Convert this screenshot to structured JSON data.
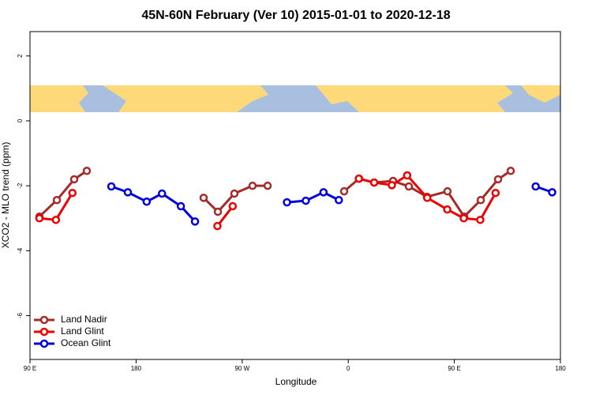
{
  "chart_data": {
    "type": "line",
    "title": "45N-60N February (Ver 10)   2015-01-01 to 2020-12-18",
    "x_label": "Longitude",
    "y_label": "XCO2 - MLO trend (ppm)",
    "xlim": [
      90,
      540
    ],
    "xticks": [
      {
        "value": 90,
        "label": "90 E"
      },
      180,
      {
        "value": 270,
        "label": "90 W"
      },
      {
        "value": 360,
        "label": "0"
      },
      {
        "value": 450,
        "label": "90 E"
      },
      {
        "value": 540,
        "label": "180"
      }
    ],
    "ylim": [
      -7.35,
      2.75
    ],
    "yticks": [
      -6,
      -4,
      -2,
      0,
      2
    ],
    "legend": "bottom-left",
    "series": [
      {
        "name": "Land Nadir",
        "color": "#a52a2a",
        "x": [
          98,
          112.8,
          127.5,
          138.2,
          null,
          237.3,
          249.4,
          263.4,
          278.8,
          291.6,
          null,
          356.5,
          369.2,
          382,
          398,
          411.4,
          426.8,
          444.2,
          458.3,
          472.4,
          487.1,
          497.8
        ],
        "values": [
          -2.95,
          -2.44,
          -1.8,
          -1.54,
          null,
          -2.37,
          -2.8,
          -2.24,
          -2.0,
          -2.0,
          null,
          -2.17,
          -1.78,
          -1.9,
          -1.85,
          -2.02,
          -2.34,
          -2.17,
          -2.95,
          -2.44,
          -1.8,
          -1.54
        ]
      },
      {
        "name": "Land Glint",
        "color": "#ee0000",
        "x": [
          98,
          112,
          126,
          null,
          249,
          262,
          null,
          369,
          382,
          397,
          410,
          427,
          444,
          458,
          472,
          485
        ],
        "values": [
          -3.0,
          -3.05,
          -2.22,
          null,
          -3.24,
          -2.63,
          null,
          -1.78,
          -1.9,
          -1.98,
          -1.68,
          -2.37,
          -2.73,
          -3.0,
          -3.05,
          -2.22
        ]
      },
      {
        "name": "Ocean Glint",
        "color": "#0000dd",
        "x": [
          159,
          173,
          189,
          202,
          218,
          230,
          null,
          308,
          324,
          339,
          352,
          null,
          519,
          533
        ],
        "values": [
          -2.02,
          -2.2,
          -2.49,
          -2.24,
          -2.63,
          -3.1,
          null,
          -2.51,
          -2.46,
          -2.2,
          -2.44,
          null,
          -2.02,
          -2.2
        ]
      }
    ]
  }
}
